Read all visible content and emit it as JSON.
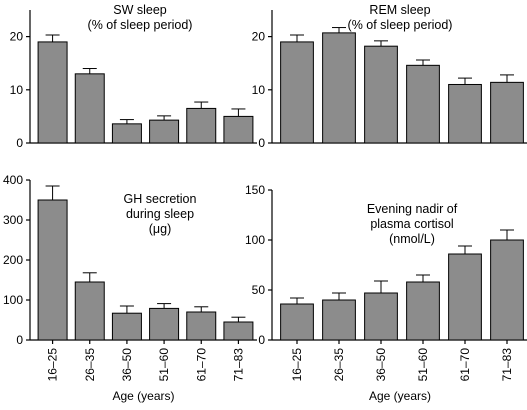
{
  "chart_data": [
    {
      "type": "bar",
      "title_lines": [
        "SW sleep",
        "(% of sleep period)"
      ],
      "categories": [
        "16–25",
        "26–35",
        "36–50",
        "51–60",
        "61–70",
        "71–83"
      ],
      "values": [
        19,
        13,
        3.6,
        4.3,
        6.5,
        5
      ],
      "errors": [
        1.3,
        1.0,
        0.8,
        0.8,
        1.2,
        1.4
      ],
      "ylim": [
        0,
        25
      ],
      "yticks": [
        0,
        10,
        20
      ],
      "xlabel": ""
    },
    {
      "type": "bar",
      "title_lines": [
        "REM sleep",
        "(% of sleep period)"
      ],
      "categories": [
        "16–25",
        "26–35",
        "36–50",
        "51–60",
        "61–70",
        "71–83"
      ],
      "values": [
        19,
        20.7,
        18.2,
        14.6,
        11,
        11.4
      ],
      "errors": [
        1.3,
        1.0,
        1.0,
        1.0,
        1.2,
        1.4
      ],
      "ylim": [
        0,
        25
      ],
      "yticks": [
        0,
        10,
        20
      ],
      "xlabel": ""
    },
    {
      "type": "bar",
      "title_lines": [
        "GH secretion",
        "during sleep",
        "(μg)"
      ],
      "categories": [
        "16–25",
        "26–35",
        "36–50",
        "51–60",
        "61–70",
        "71–83"
      ],
      "values": [
        350,
        145,
        67,
        79,
        70,
        45
      ],
      "errors": [
        35,
        23,
        18,
        12,
        13,
        12
      ],
      "ylim": [
        0,
        400
      ],
      "yticks": [
        0,
        100,
        200,
        300,
        400
      ],
      "xlabel": "Age (years)"
    },
    {
      "type": "bar",
      "title_lines": [
        "Evening nadir of",
        "plasma cortisol",
        "(nmol/L)"
      ],
      "categories": [
        "16–25",
        "26–35",
        "36–50",
        "51–60",
        "61–70",
        "71–83"
      ],
      "values": [
        36,
        40,
        47,
        58,
        86,
        100
      ],
      "errors": [
        6,
        7,
        12,
        7,
        8,
        10
      ],
      "ylim": [
        0,
        150
      ],
      "yticks": [
        0,
        50,
        100,
        150
      ],
      "xlabel": "Age (years)"
    }
  ]
}
